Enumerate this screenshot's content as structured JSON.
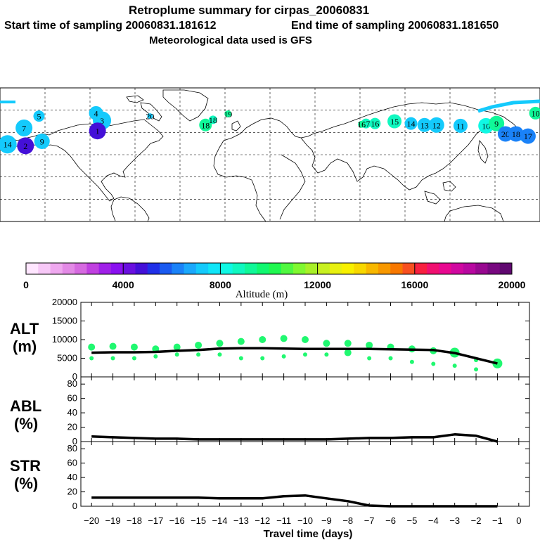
{
  "title": {
    "line1": "Retroplume summary for cirpas_20060831",
    "line2a": "Start time of sampling 20060831.181612",
    "line2b": "End time of sampling 20060831.181650",
    "line3": "Meteorological data used is GFS"
  },
  "colorbar": {
    "label": "Altitude (m)",
    "tick_labels": [
      "0",
      "4000",
      "8000",
      "12000",
      "16000",
      "20000"
    ],
    "colors": [
      "#ffe6ff",
      "#f7c8f7",
      "#efa8ef",
      "#e38ae6",
      "#d66ae0",
      "#c040e0",
      "#a020e8",
      "#8a10f0",
      "#6a10e0",
      "#4410d8",
      "#2030e8",
      "#1a5af0",
      "#1a82f8",
      "#1aa8fc",
      "#14cafc",
      "#10e6f8",
      "#10f8e4",
      "#10f8c0",
      "#10f898",
      "#10f870",
      "#20f850",
      "#50f840",
      "#80f830",
      "#a8f028",
      "#c8f020",
      "#e8f010",
      "#f8f000",
      "#f8d800",
      "#f8b800",
      "#f89800",
      "#f87800",
      "#f85020",
      "#f82040",
      "#f01070",
      "#e80890",
      "#d008a0",
      "#b808a0",
      "#980890",
      "#780880",
      "#600870"
    ]
  },
  "map": {
    "points": [
      {
        "day": 20,
        "lon": -80,
        "lat": 52,
        "color": "#14cafc",
        "r": 4
      },
      {
        "day": 19,
        "lon": -28,
        "lat": 55,
        "color": "#10f898",
        "r": 5
      },
      {
        "day": 18,
        "lon": -43,
        "lat": 40,
        "color": "#10f898",
        "r": 9
      },
      {
        "day": 18,
        "lon": -38,
        "lat": 47,
        "color": "#10f8c0",
        "r": 6
      },
      {
        "day": 17,
        "lon": 64,
        "lat": 42,
        "color": "#10f8c0",
        "r": 7
      },
      {
        "day": 16,
        "lon": 70,
        "lat": 42,
        "color": "#10f8c0",
        "r": 8
      },
      {
        "day": 16,
        "lon": 61,
        "lat": 41,
        "color": "#10f898",
        "r": 5
      },
      {
        "day": 15,
        "lon": 83,
        "lat": 45,
        "color": "#10f8c0",
        "r": 10
      },
      {
        "day": 14,
        "lon": 94,
        "lat": 42,
        "color": "#14cafc",
        "r": 9
      },
      {
        "day": 13,
        "lon": 103,
        "lat": 40,
        "color": "#14cafc",
        "r": 10
      },
      {
        "day": 12,
        "lon": 111,
        "lat": 40,
        "color": "#14cafc",
        "r": 11
      },
      {
        "day": 11,
        "lon": 127,
        "lat": 39,
        "color": "#14cafc",
        "r": 10
      },
      {
        "day": 10,
        "lon": 144,
        "lat": 39,
        "color": "#10f8e4",
        "r": 11
      },
      {
        "day": 9,
        "lon": 151,
        "lat": 42,
        "color": "#10f898",
        "r": 11
      },
      {
        "day": 3,
        "lon": -112,
        "lat": 46,
        "color": "#14cafc",
        "r": 13
      },
      {
        "day": 4,
        "lon": -116,
        "lat": 56,
        "color": "#14cafc",
        "r": 10
      },
      {
        "day": 5,
        "lon": -154,
        "lat": 52,
        "color": "#14cafc",
        "r": 8
      },
      {
        "day": 7,
        "lon": -164,
        "lat": 36,
        "color": "#14cafc",
        "r": 12
      },
      {
        "day": 9,
        "lon": -152,
        "lat": 18,
        "color": "#14cafc",
        "r": 11
      },
      {
        "day": 20,
        "lon": 157,
        "lat": 28,
        "color": "#1a82f8",
        "r": 11
      },
      {
        "day": 18,
        "lon": 164,
        "lat": 28,
        "color": "#1a82f8",
        "r": 11
      },
      {
        "day": 17,
        "lon": 172,
        "lat": 25,
        "color": "#1a82f8",
        "r": 11
      },
      {
        "day": 10,
        "lon": 177,
        "lat": 56,
        "color": "#10f898",
        "r": 9
      },
      {
        "day": 14,
        "lon": -175,
        "lat": 14,
        "color": "#14cafc",
        "r": 13
      },
      {
        "day": 2,
        "lon": -163,
        "lat": 12,
        "color": "#4410d8",
        "r": 12
      },
      {
        "day": 1,
        "lon": -115,
        "lat": 32,
        "color": "#4410d8",
        "r": 12
      }
    ]
  },
  "chart_data": [
    {
      "type": "line",
      "panel": "ALT",
      "ylabel": "ALT (m)",
      "ylim": [
        0,
        20000
      ],
      "yticks": [
        0,
        5000,
        10000,
        15000,
        20000
      ],
      "x": [
        -20,
        -19,
        -18,
        -17,
        -16,
        -15,
        -14,
        -13,
        -12,
        -11,
        -10,
        -9,
        -8,
        -7,
        -6,
        -5,
        -4,
        -3,
        -2,
        -1
      ],
      "series": [
        {
          "name": "mean altitude",
          "values": [
            6500,
            6600,
            6600,
            6700,
            7000,
            7200,
            7600,
            7700,
            7700,
            7600,
            7500,
            7500,
            7500,
            7500,
            7400,
            7300,
            7200,
            6400,
            5000,
            3600
          ]
        }
      ],
      "scatter": [
        {
          "x": -20,
          "y": 8000
        },
        {
          "x": -20,
          "y": 5000
        },
        {
          "x": -19,
          "y": 8200
        },
        {
          "x": -19,
          "y": 5000
        },
        {
          "x": -18,
          "y": 8000
        },
        {
          "x": -18,
          "y": 5000
        },
        {
          "x": -17,
          "y": 7500
        },
        {
          "x": -17,
          "y": 5500
        },
        {
          "x": -16,
          "y": 8000
        },
        {
          "x": -16,
          "y": 6000
        },
        {
          "x": -15,
          "y": 8500
        },
        {
          "x": -15,
          "y": 6000
        },
        {
          "x": -14,
          "y": 9000
        },
        {
          "x": -14,
          "y": 6000
        },
        {
          "x": -13,
          "y": 9500
        },
        {
          "x": -13,
          "y": 5000
        },
        {
          "x": -12,
          "y": 10000
        },
        {
          "x": -12,
          "y": 5000
        },
        {
          "x": -11,
          "y": 10300
        },
        {
          "x": -11,
          "y": 5500
        },
        {
          "x": -10,
          "y": 10000
        },
        {
          "x": -10,
          "y": 6000
        },
        {
          "x": -9,
          "y": 9000
        },
        {
          "x": -9,
          "y": 6000
        },
        {
          "x": -8,
          "y": 9000
        },
        {
          "x": -8,
          "y": 6500
        },
        {
          "x": -7,
          "y": 8500
        },
        {
          "x": -7,
          "y": 5000
        },
        {
          "x": -6,
          "y": 8000
        },
        {
          "x": -6,
          "y": 5000
        },
        {
          "x": -5,
          "y": 7500
        },
        {
          "x": -5,
          "y": 4000
        },
        {
          "x": -4,
          "y": 7000
        },
        {
          "x": -4,
          "y": 3500
        },
        {
          "x": -3,
          "y": 6500
        },
        {
          "x": -3,
          "y": 3000
        },
        {
          "x": -2,
          "y": 4500
        },
        {
          "x": -2,
          "y": 2000
        },
        {
          "x": -1,
          "y": 3600
        }
      ]
    },
    {
      "type": "line",
      "panel": "ABL",
      "ylabel": "ABL (%)",
      "ylim": [
        0,
        90
      ],
      "yticks": [
        0,
        20,
        40,
        60,
        80
      ],
      "x": [
        -20,
        -19,
        -18,
        -17,
        -16,
        -15,
        -14,
        -13,
        -12,
        -11,
        -10,
        -9,
        -8,
        -7,
        -6,
        -5,
        -4,
        -3,
        -2,
        -1
      ],
      "series": [
        {
          "name": "ABL fraction",
          "values": [
            7,
            6,
            5,
            4,
            4,
            3,
            3,
            3,
            3,
            3,
            3,
            3,
            4,
            5,
            5,
            6,
            6,
            10,
            8,
            0
          ]
        }
      ]
    },
    {
      "type": "line",
      "panel": "STR",
      "ylabel": "STR (%)",
      "ylim": [
        0,
        90
      ],
      "yticks": [
        0,
        20,
        40,
        60,
        80
      ],
      "xlabel": "Travel time (days)",
      "xticks": [
        -20,
        -19,
        -18,
        -17,
        -16,
        -15,
        -14,
        -13,
        -12,
        -11,
        -10,
        -9,
        -8,
        -7,
        -6,
        -5,
        -4,
        -3,
        -2,
        -1,
        0
      ],
      "x": [
        -20,
        -19,
        -18,
        -17,
        -16,
        -15,
        -14,
        -13,
        -12,
        -11,
        -10,
        -9,
        -8,
        -7,
        -6,
        -5,
        -4,
        -3,
        -2,
        -1
      ],
      "series": [
        {
          "name": "stratosphere fraction",
          "values": [
            12,
            12,
            12,
            12,
            12,
            12,
            11,
            11,
            11,
            14,
            15,
            11,
            7,
            1,
            0,
            0,
            0,
            0,
            0,
            0
          ]
        }
      ]
    }
  ]
}
